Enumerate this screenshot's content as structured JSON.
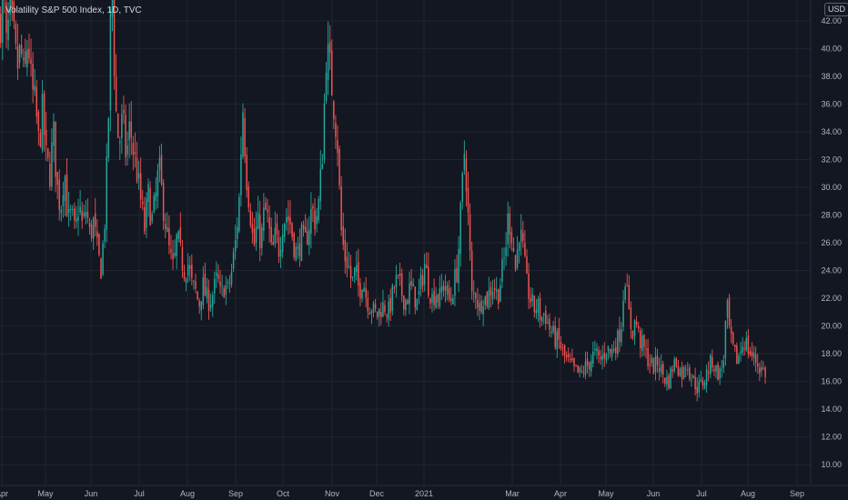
{
  "chart_data": {
    "type": "candlestick",
    "title": "Volatility S&P 500 Index, 1D, TVC",
    "currency": "USD",
    "x_tick_labels": [
      "Apr",
      "May",
      "Jun",
      "Jul",
      "Aug",
      "Sep",
      "Oct",
      "Nov",
      "Dec",
      "2021",
      "Mar",
      "Apr",
      "May",
      "Jun",
      "Jul",
      "Aug",
      "Sep"
    ],
    "y_tick_labels": [
      "42.00",
      "40.00",
      "38.00",
      "36.00",
      "34.00",
      "32.00",
      "30.00",
      "28.00",
      "26.00",
      "24.00",
      "22.00",
      "20.00",
      "18.00",
      "16.00",
      "14.00",
      "12.00",
      "10.00"
    ],
    "ylim": [
      8.5,
      43.5
    ],
    "colors": {
      "up": "#26a69a",
      "down": "#ef5350",
      "background": "#131722",
      "grid": "#1f2430"
    },
    "grid": true,
    "close_path": [
      [
        0,
        42.0
      ],
      [
        3,
        44.5
      ],
      [
        6,
        40.0
      ],
      [
        10,
        42.5
      ],
      [
        14,
        41.0
      ],
      [
        18,
        38.5
      ],
      [
        22,
        40.0
      ],
      [
        26,
        37.5
      ],
      [
        30,
        41.0
      ],
      [
        34,
        37.0
      ],
      [
        38,
        36.0
      ],
      [
        42,
        33.0
      ],
      [
        46,
        35.5
      ],
      [
        50,
        32.0
      ],
      [
        54,
        31.0
      ],
      [
        58,
        34.0
      ],
      [
        62,
        30.0
      ],
      [
        66,
        28.5
      ],
      [
        70,
        31.5
      ],
      [
        74,
        27.5
      ],
      [
        78,
        28.0
      ],
      [
        82,
        26.5
      ],
      [
        86,
        29.0
      ],
      [
        90,
        27.0
      ],
      [
        94,
        28.5
      ],
      [
        98,
        26.5
      ],
      [
        102,
        27.5
      ],
      [
        106,
        25.5
      ],
      [
        110,
        24.0
      ],
      [
        114,
        27.0
      ],
      [
        118,
        33.5
      ],
      [
        122,
        46.0
      ],
      [
        126,
        36.0
      ],
      [
        130,
        33.0
      ],
      [
        134,
        35.0
      ],
      [
        138,
        32.0
      ],
      [
        142,
        34.5
      ],
      [
        146,
        32.5
      ],
      [
        150,
        31.0
      ],
      [
        154,
        29.0
      ],
      [
        158,
        27.0
      ],
      [
        162,
        29.5
      ],
      [
        166,
        27.5
      ],
      [
        170,
        29.0
      ],
      [
        174,
        31.5
      ],
      [
        178,
        29.0
      ],
      [
        182,
        27.0
      ],
      [
        186,
        25.0
      ],
      [
        190,
        24.0
      ],
      [
        194,
        26.5
      ],
      [
        198,
        25.0
      ],
      [
        202,
        24.0
      ],
      [
        206,
        24.5
      ],
      [
        210,
        23.0
      ],
      [
        214,
        22.5
      ],
      [
        218,
        21.5
      ],
      [
        222,
        23.0
      ],
      [
        226,
        22.0
      ],
      [
        230,
        21.8
      ],
      [
        234,
        22.5
      ],
      [
        238,
        23.5
      ],
      [
        242,
        22.0
      ],
      [
        246,
        23.0
      ],
      [
        250,
        22.5
      ],
      [
        254,
        24.0
      ],
      [
        258,
        26.0
      ],
      [
        262,
        29.0
      ],
      [
        266,
        36.0
      ],
      [
        270,
        31.0
      ],
      [
        274,
        28.5
      ],
      [
        278,
        25.5
      ],
      [
        282,
        27.5
      ],
      [
        286,
        26.0
      ],
      [
        290,
        28.5
      ],
      [
        294,
        27.5
      ],
      [
        298,
        25.0
      ],
      [
        302,
        26.5
      ],
      [
        306,
        25.5
      ],
      [
        310,
        27.5
      ],
      [
        314,
        28.0
      ],
      [
        318,
        27.5
      ],
      [
        322,
        26.0
      ],
      [
        326,
        25.0
      ],
      [
        330,
        26.5
      ],
      [
        334,
        25.8
      ],
      [
        338,
        27.0
      ],
      [
        342,
        28.5
      ],
      [
        346,
        27.5
      ],
      [
        350,
        29.0
      ],
      [
        354,
        33.0
      ],
      [
        358,
        40.0
      ],
      [
        362,
        38.5
      ],
      [
        366,
        36.0
      ],
      [
        370,
        33.5
      ],
      [
        374,
        27.0
      ],
      [
        378,
        25.0
      ],
      [
        382,
        24.5
      ],
      [
        386,
        23.0
      ],
      [
        390,
        24.0
      ],
      [
        394,
        22.5
      ],
      [
        398,
        23.5
      ],
      [
        402,
        22.0
      ],
      [
        406,
        21.5
      ],
      [
        410,
        21.0
      ],
      [
        414,
        20.8
      ],
      [
        418,
        21.3
      ],
      [
        422,
        21.5
      ],
      [
        426,
        20.9
      ],
      [
        430,
        22.0
      ],
      [
        434,
        23.2
      ],
      [
        438,
        23.0
      ],
      [
        442,
        22.1
      ],
      [
        446,
        21.8
      ],
      [
        450,
        22.8
      ],
      [
        454,
        22.3
      ],
      [
        458,
        21.6
      ],
      [
        462,
        23.0
      ],
      [
        466,
        24.5
      ],
      [
        470,
        23.0
      ],
      [
        474,
        22.0
      ],
      [
        478,
        22.5
      ],
      [
        482,
        21.8
      ],
      [
        486,
        23.1
      ],
      [
        490,
        22.5
      ],
      [
        494,
        21.6
      ],
      [
        498,
        23.0
      ],
      [
        502,
        24.2
      ],
      [
        506,
        28.5
      ],
      [
        510,
        33.0
      ],
      [
        514,
        27.5
      ],
      [
        518,
        22.0
      ],
      [
        522,
        22.5
      ],
      [
        526,
        21.2
      ],
      [
        530,
        22.3
      ],
      [
        534,
        21.8
      ],
      [
        538,
        22.6
      ],
      [
        542,
        23.0
      ],
      [
        546,
        22.1
      ],
      [
        550,
        23.5
      ],
      [
        554,
        25.0
      ],
      [
        558,
        28.0
      ],
      [
        562,
        26.5
      ],
      [
        566,
        24.0
      ],
      [
        570,
        27.0
      ],
      [
        574,
        25.5
      ],
      [
        578,
        23.0
      ],
      [
        582,
        22.0
      ],
      [
        586,
        21.2
      ],
      [
        590,
        21.5
      ],
      [
        594,
        20.5
      ],
      [
        598,
        21.0
      ],
      [
        602,
        20.0
      ],
      [
        606,
        19.5
      ],
      [
        610,
        19.0
      ],
      [
        614,
        18.8
      ],
      [
        618,
        18.0
      ],
      [
        622,
        17.5
      ],
      [
        626,
        17.2
      ],
      [
        630,
        16.8
      ],
      [
        634,
        16.6
      ],
      [
        638,
        16.5
      ],
      [
        642,
        17.0
      ],
      [
        646,
        17.2
      ],
      [
        650,
        17.8
      ],
      [
        654,
        18.0
      ],
      [
        658,
        17.5
      ],
      [
        662,
        17.8
      ],
      [
        666,
        18.5
      ],
      [
        670,
        18.0
      ],
      [
        674,
        18.5
      ],
      [
        678,
        19.0
      ],
      [
        682,
        20.0
      ],
      [
        686,
        24.0
      ],
      [
        690,
        21.0
      ],
      [
        694,
        19.5
      ],
      [
        698,
        20.5
      ],
      [
        702,
        19.0
      ],
      [
        706,
        18.5
      ],
      [
        710,
        17.8
      ],
      [
        714,
        17.3
      ],
      [
        718,
        17.0
      ],
      [
        722,
        17.4
      ],
      [
        726,
        16.8
      ],
      [
        730,
        16.2
      ],
      [
        734,
        16.0
      ],
      [
        738,
        17.0
      ],
      [
        742,
        17.5
      ],
      [
        746,
        16.8
      ],
      [
        750,
        16.5
      ],
      [
        754,
        17.5
      ],
      [
        758,
        16.5
      ],
      [
        762,
        16.0
      ],
      [
        766,
        15.5
      ],
      [
        770,
        15.8
      ],
      [
        774,
        16.2
      ],
      [
        778,
        17.0
      ],
      [
        782,
        17.5
      ],
      [
        786,
        16.8
      ],
      [
        790,
        16.5
      ],
      [
        794,
        17.2
      ],
      [
        798,
        21.5
      ],
      [
        802,
        19.0
      ],
      [
        806,
        18.0
      ],
      [
        810,
        17.5
      ],
      [
        814,
        18.5
      ],
      [
        818,
        19.0
      ],
      [
        822,
        18.2
      ],
      [
        826,
        17.8
      ],
      [
        830,
        17.5
      ],
      [
        834,
        17.0
      ],
      [
        838,
        16.8
      ],
      [
        842,
        16.5
      ]
    ],
    "spikes": [
      [
        118,
        46.5,
        32.5
      ],
      [
        266,
        38.2,
        28.5
      ],
      [
        358,
        41.2,
        33.0
      ],
      [
        362,
        40.8,
        34.5
      ],
      [
        510,
        37.6,
        29.5
      ],
      [
        506,
        36.0,
        27.0
      ],
      [
        558,
        31.0,
        24.0
      ],
      [
        570,
        29.8,
        23.5
      ],
      [
        686,
        28.8,
        21.0
      ],
      [
        798,
        24.8,
        18.0
      ],
      [
        754,
        22.5,
        16.8
      ],
      [
        466,
        27.5,
        22.0
      ]
    ]
  }
}
